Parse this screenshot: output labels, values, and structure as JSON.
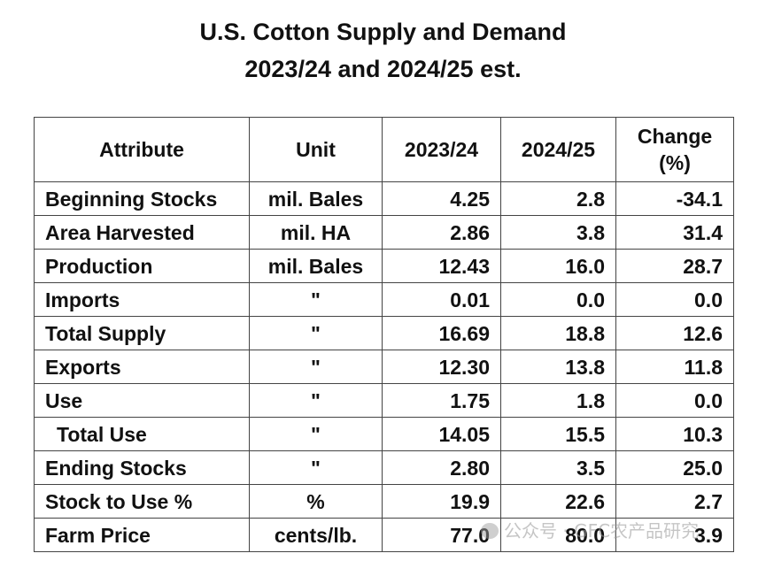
{
  "title": {
    "line1": "U.S. Cotton Supply and Demand",
    "line2": "2023/24 and 2024/25 est."
  },
  "table": {
    "headers": {
      "attribute": "Attribute",
      "unit": "Unit",
      "y1": "2023/24",
      "y2": "2024/25",
      "change_line1": "Change",
      "change_line2": "(%)"
    },
    "rows": [
      {
        "attribute": "Beginning Stocks",
        "unit": "mil. Bales",
        "y1": "4.25",
        "y2": "2.8",
        "change": "-34.1"
      },
      {
        "attribute": "Area Harvested",
        "unit": "mil. HA",
        "y1": "2.86",
        "y2": "3.8",
        "change": "31.4"
      },
      {
        "attribute": "Production",
        "unit": "mil. Bales",
        "y1": "12.43",
        "y2": "16.0",
        "change": "28.7"
      },
      {
        "attribute": "Imports",
        "unit": "\"",
        "y1": "0.01",
        "y2": "0.0",
        "change": "0.0"
      },
      {
        "attribute": "Total Supply",
        "unit": "\"",
        "y1": "16.69",
        "y2": "18.8",
        "change": "12.6"
      },
      {
        "attribute": "Exports",
        "unit": "\"",
        "y1": "12.30",
        "y2": "13.8",
        "change": "11.8"
      },
      {
        "attribute": "Use",
        "unit": "\"",
        "y1": "1.75",
        "y2": "1.8",
        "change": "0.0"
      },
      {
        "attribute": "Total Use",
        "unit": "\"",
        "y1": "14.05",
        "y2": "15.5",
        "change": "10.3"
      },
      {
        "attribute": "Ending Stocks",
        "unit": "\"",
        "y1": "2.80",
        "y2": "3.5",
        "change": "25.0"
      },
      {
        "attribute": "Stock to Use %",
        "unit": "%",
        "y1": "19.9",
        "y2": "22.6",
        "change": "2.7"
      },
      {
        "attribute": "Farm Price",
        "unit": "cents/lb.",
        "y1": "77.0",
        "y2": "80.0",
        "change": "3.9"
      }
    ]
  },
  "watermark": {
    "text": "公众号 · GFC农产品研究",
    "icon": "wechat-icon"
  }
}
